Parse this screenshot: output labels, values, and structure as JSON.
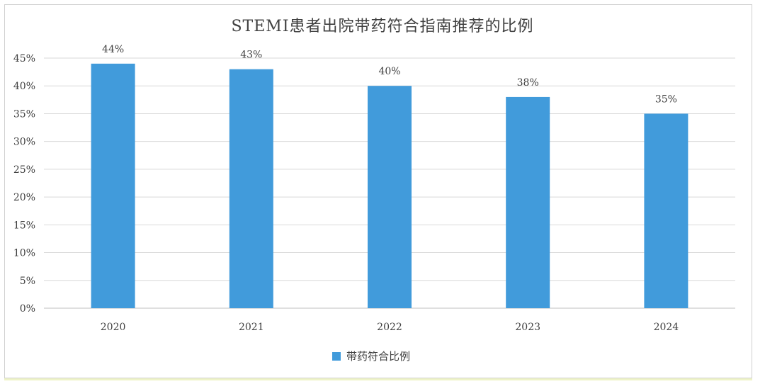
{
  "chart_data": {
    "type": "bar",
    "title": "STEMI患者出院带药符合指南推荐的比例",
    "categories": [
      "2020",
      "2021",
      "2022",
      "2023",
      "2024"
    ],
    "series": [
      {
        "name": "带药符合比例",
        "values": [
          44,
          43,
          40,
          38,
          35
        ],
        "data_labels": [
          "44%",
          "43%",
          "40%",
          "38%",
          "35%"
        ],
        "color": "#419bdb"
      }
    ],
    "xlabel": "",
    "ylabel": "",
    "ylim": [
      0,
      45
    ],
    "yticks": [
      0,
      5,
      10,
      15,
      20,
      25,
      30,
      35,
      40,
      45
    ],
    "ytick_labels": [
      "0%",
      "5%",
      "10%",
      "15%",
      "20%",
      "25%",
      "30%",
      "35%",
      "40%",
      "45%"
    ],
    "grid": true,
    "legend_position": "bottom",
    "grid_color": "#d9d9d9",
    "axis_color": "#bfbfbf"
  }
}
